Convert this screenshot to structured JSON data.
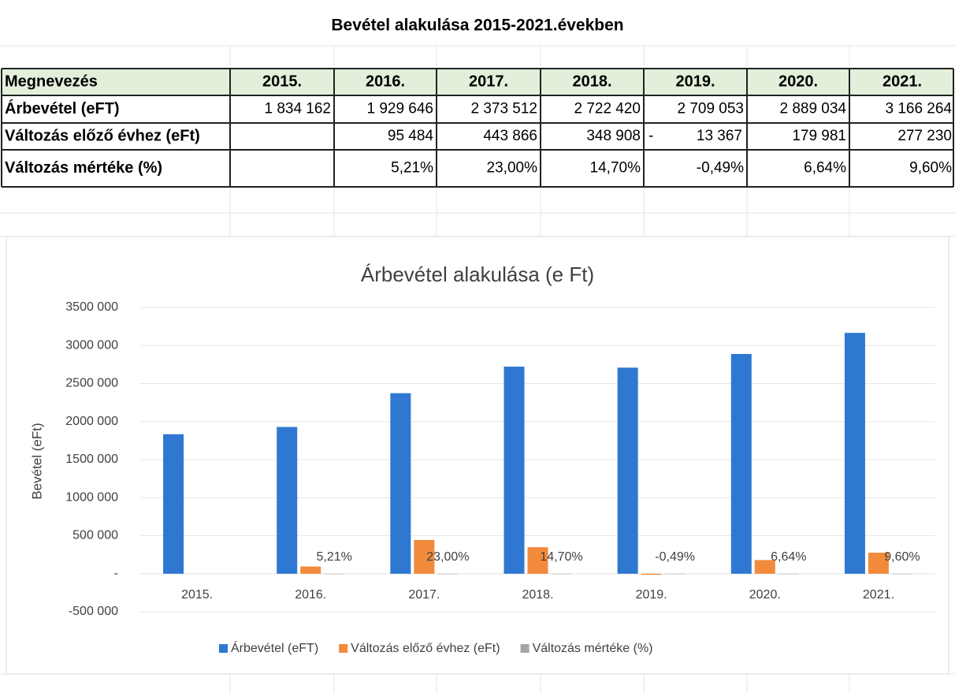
{
  "table": {
    "title": "Bevétel alakulása 2015-2021.években",
    "header": [
      "Megnevezés",
      "2015.",
      "2016.",
      "2017.",
      "2018.",
      "2019.",
      "2020.",
      "2021."
    ],
    "rows": [
      [
        "Árbevétel (eFT)",
        "1 834 162",
        "1 929 646",
        "2 373 512",
        "2 722 420",
        "2 709 053",
        "2 889 034",
        "3 166 264"
      ],
      [
        "Változás előző évhez (eFt)",
        null,
        "95 484",
        "443 866",
        "348 908",
        {
          "sign": "-",
          "amount": "13 367"
        },
        "179 981",
        "277 230"
      ],
      [
        "Változás mértéke (%)",
        null,
        "5,21%",
        "23,00%",
        "14,70%",
        "-0,49%",
        "6,64%",
        "9,60%"
      ]
    ]
  },
  "chart_data": {
    "type": "bar",
    "title": "Árbevétel alakulása (e Ft)",
    "y_label": "Bevétel (eFt)",
    "categories": [
      "2015.",
      "2016.",
      "2017.",
      "2018.",
      "2019.",
      "2020.",
      "2021."
    ],
    "series": [
      {
        "name": "Árbevétel (eFT)",
        "color": "#2e78d2",
        "values": [
          1834162,
          1929646,
          2373512,
          2722420,
          2709053,
          2889034,
          3166264
        ]
      },
      {
        "name": "Változás előző évhez (eFt)",
        "color": "#f28a3c",
        "values": [
          null,
          95484,
          443866,
          348908,
          -13367,
          179981,
          277230
        ]
      },
      {
        "name": "Változás mértéke (%)",
        "color": "#a5a5a5",
        "values": [
          null,
          0.0521,
          0.23,
          0.147,
          -0.0049,
          0.0664,
          0.096
        ],
        "value_labels": [
          null,
          "5,21%",
          "23,00%",
          "14,70%",
          "-0,49%",
          "6,64%",
          "9,60%"
        ]
      }
    ],
    "ylim": [
      -500000,
      3500000
    ],
    "yticks": [
      {
        "value": -500000,
        "label": "-500 000"
      },
      {
        "value": 0,
        "label": "-"
      },
      {
        "value": 500000,
        "label": "500 000"
      },
      {
        "value": 1000000,
        "label": "1000 000"
      },
      {
        "value": 1500000,
        "label": "1500 000"
      },
      {
        "value": 2000000,
        "label": "2000 000"
      },
      {
        "value": 2500000,
        "label": "2500 000"
      },
      {
        "value": 3000000,
        "label": "3000 000"
      },
      {
        "value": 3500000,
        "label": "3500 000"
      }
    ],
    "grid": true,
    "legend": "bottom"
  }
}
